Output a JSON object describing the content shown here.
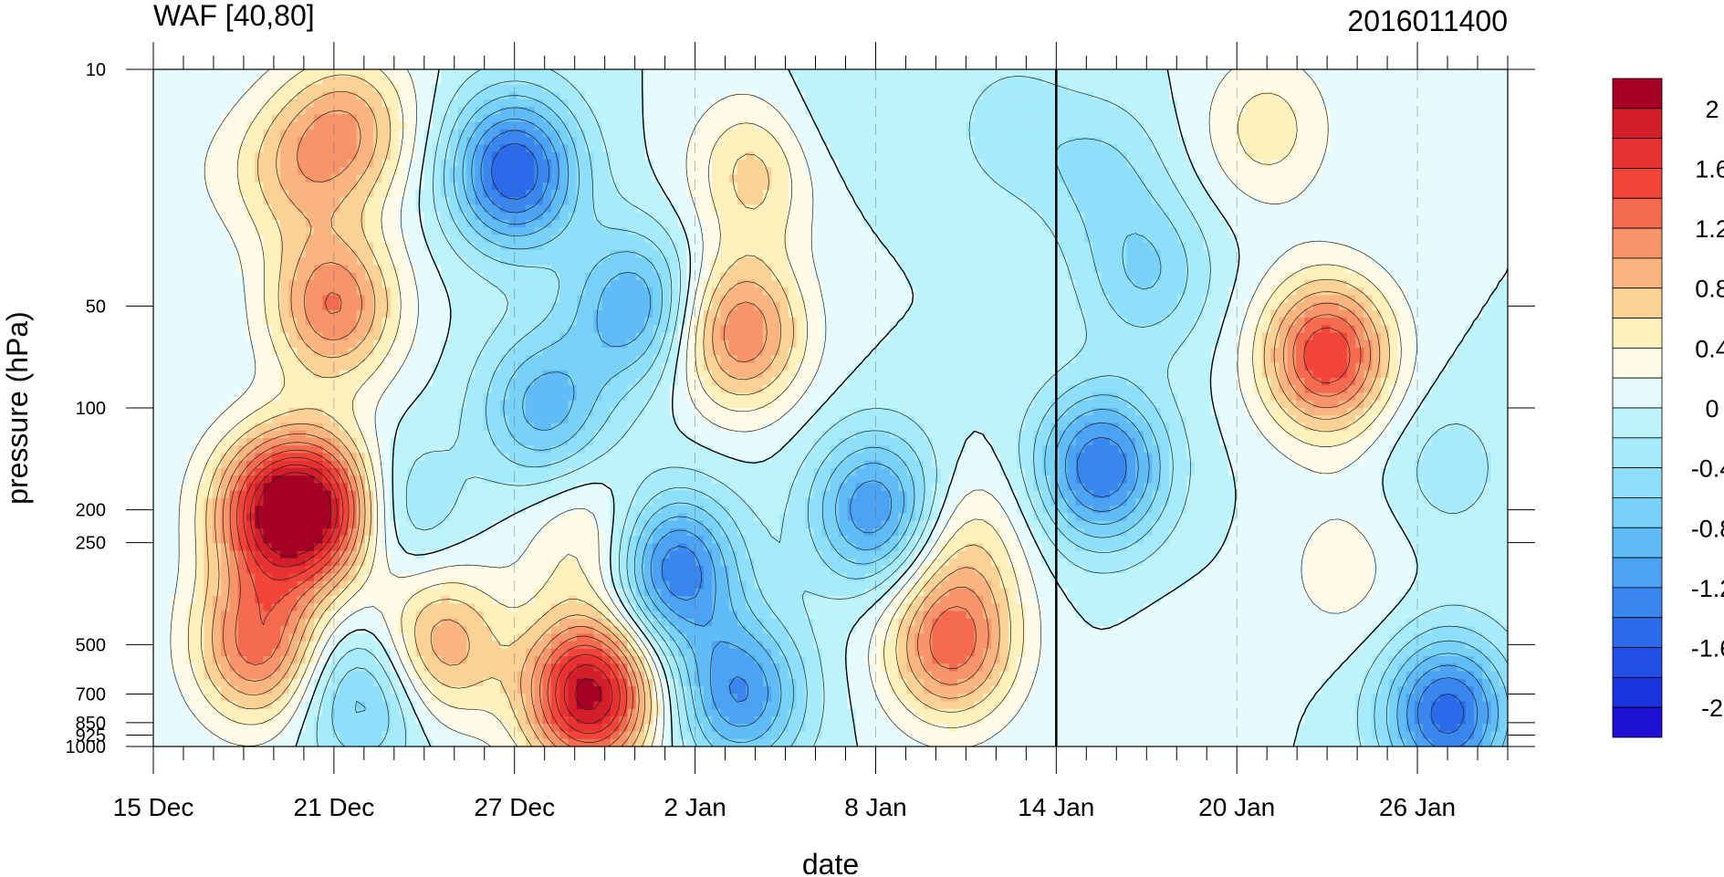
{
  "chart_data": {
    "type": "heatmap",
    "title": "WAF [40,80]",
    "subtitle": "2016011400",
    "xlabel": "date",
    "ylabel": "pressure (hPa)",
    "x_ticks": [
      "15 Dec",
      "21 Dec",
      "27 Dec",
      "2 Jan",
      "8 Jan",
      "14 Jan",
      "20 Jan",
      "26 Jan"
    ],
    "x_range_days": [
      0,
      45
    ],
    "x_major_step_days": 6,
    "y_scale": "log",
    "y_ticks": [
      "10",
      "50",
      "100",
      "200",
      "250",
      "500",
      "700",
      "850",
      "925",
      "1000"
    ],
    "y_range": [
      1000,
      10
    ],
    "marker_line_date": "14 Jan",
    "colorbar_labels": [
      "2",
      "1.6",
      "1.2",
      "0.8",
      "0.4",
      "0",
      "-0.4",
      "-0.8",
      "-1.2",
      "-1.6",
      "-2"
    ],
    "colorbar_levels": [
      2.2,
      2.0,
      1.8,
      1.6,
      1.4,
      1.2,
      1.0,
      0.8,
      0.6,
      0.4,
      0.2,
      0.0,
      -0.2,
      -0.4,
      -0.6,
      -0.8,
      -1.0,
      -1.2,
      -1.4,
      -1.6,
      -1.8,
      -2.0,
      -2.2
    ],
    "colorbar_colors": [
      "#a50026",
      "#d21f2a",
      "#e83232",
      "#f2453a",
      "#f56b4f",
      "#f8946a",
      "#fab47f",
      "#fcd196",
      "#fff0bc",
      "#fffbe6",
      "#e5fbfd",
      "#bdf3fb",
      "#a5ebfb",
      "#8ee0fa",
      "#78d2f8",
      "#5fbcf6",
      "#4ca2f3",
      "#3a86ef",
      "#2b6aeb",
      "#2150e6",
      "#1b34e1",
      "#1e10d3"
    ],
    "features": [
      {
        "day": 4,
        "p": 200,
        "value": 1.6
      },
      {
        "day": 3.5,
        "p": 500,
        "value": 1.3
      },
      {
        "day": 6,
        "p": 50,
        "value": 1.2
      },
      {
        "day": 5.8,
        "p": 200,
        "value": 1.5
      },
      {
        "day": 4.5,
        "p": 20,
        "value": 0.6
      },
      {
        "day": 6.5,
        "p": 15,
        "value": 0.9
      },
      {
        "day": 1,
        "p": 20,
        "value": 0.1
      },
      {
        "day": 7,
        "p": 700,
        "value": -0.8
      },
      {
        "day": 8,
        "p": 200,
        "value": -0.6
      },
      {
        "day": 9.5,
        "p": 500,
        "value": 1.0
      },
      {
        "day": 12,
        "p": 20,
        "value": -1.6
      },
      {
        "day": 13,
        "p": 100,
        "value": -0.9
      },
      {
        "day": 14.5,
        "p": 700,
        "value": 2.1
      },
      {
        "day": 14.5,
        "p": 250,
        "value": 0.5
      },
      {
        "day": 16,
        "p": 50,
        "value": -1.0
      },
      {
        "day": 17.3,
        "p": 300,
        "value": -1.4
      },
      {
        "day": 19.5,
        "p": 60,
        "value": 1.2
      },
      {
        "day": 20,
        "p": 20,
        "value": 0.7
      },
      {
        "day": 19.5,
        "p": 700,
        "value": -1.2
      },
      {
        "day": 24,
        "p": 200,
        "value": -1.2
      },
      {
        "day": 26.5,
        "p": 500,
        "value": 1.3
      },
      {
        "day": 27,
        "p": 250,
        "value": 0.5
      },
      {
        "day": 31.5,
        "p": 150,
        "value": -1.4
      },
      {
        "day": 33,
        "p": 40,
        "value": -0.6
      },
      {
        "day": 31.5,
        "p": 20,
        "value": -0.4
      },
      {
        "day": 34.5,
        "p": 600,
        "value": 0.1
      },
      {
        "day": 39,
        "p": 70,
        "value": 1.6
      },
      {
        "day": 37,
        "p": 15,
        "value": 0.5
      },
      {
        "day": 39.5,
        "p": 300,
        "value": 0.3
      },
      {
        "day": 43,
        "p": 800,
        "value": -1.5
      },
      {
        "day": 43,
        "p": 150,
        "value": -0.3
      },
      {
        "day": 28.5,
        "p": 15,
        "value": -0.3
      },
      {
        "day": 22,
        "p": 15,
        "value": -0.2
      }
    ]
  }
}
